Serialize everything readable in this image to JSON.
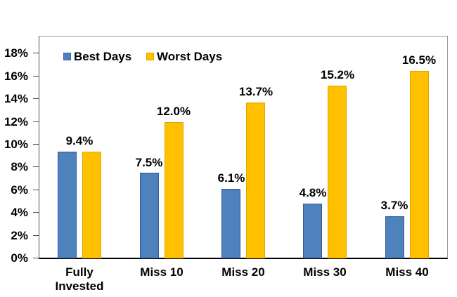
{
  "chart_data": {
    "type": "bar",
    "title": "",
    "categories": [
      "Fully Invested",
      "Miss 10",
      "Miss 20",
      "Miss 30",
      "Miss 40"
    ],
    "series": [
      {
        "name": "Best Days",
        "color": "#4f81bd",
        "border_color": "#2f5b97",
        "values": [
          9.4,
          7.5,
          6.1,
          4.8,
          3.7
        ]
      },
      {
        "name": "Worst Days",
        "color": "#ffc000",
        "border_color": "#e0a400",
        "values": [
          9.4,
          12.0,
          13.7,
          15.2,
          16.5
        ]
      }
    ],
    "data_labels": [
      {
        "text": "9.4%",
        "group": 0,
        "anchor": "group",
        "value": 9.4
      },
      {
        "text": "7.5%",
        "group": 1,
        "anchor": "series0",
        "value": 7.5
      },
      {
        "text": "12.0%",
        "group": 1,
        "anchor": "series1",
        "value": 12.0
      },
      {
        "text": "6.1%",
        "group": 2,
        "anchor": "series0",
        "value": 6.1
      },
      {
        "text": "13.7%",
        "group": 2,
        "anchor": "series1",
        "value": 13.7
      },
      {
        "text": "4.8%",
        "group": 3,
        "anchor": "series0",
        "value": 4.8
      },
      {
        "text": "15.2%",
        "group": 3,
        "anchor": "series1",
        "value": 15.2
      },
      {
        "text": "3.7%",
        "group": 4,
        "anchor": "series0",
        "value": 3.7
      },
      {
        "text": "16.5%",
        "group": 4,
        "anchor": "series1",
        "value": 16.5
      }
    ],
    "y_axis": {
      "min": 0,
      "max": 18,
      "step": 2,
      "unit": "%",
      "tick_labels": [
        "0%",
        "2%",
        "4%",
        "6%",
        "8%",
        "10%",
        "12%",
        "14%",
        "16%",
        "18%"
      ]
    },
    "x_axis": {
      "label": ""
    },
    "legend": {
      "position": "top-left-inside",
      "entries": [
        "Best Days",
        "Worst Days"
      ]
    },
    "grid": false
  },
  "colors": {
    "background": "#ffffff",
    "plot_border": "#9c9c9c",
    "axis": "#000000",
    "text": "#000000"
  }
}
